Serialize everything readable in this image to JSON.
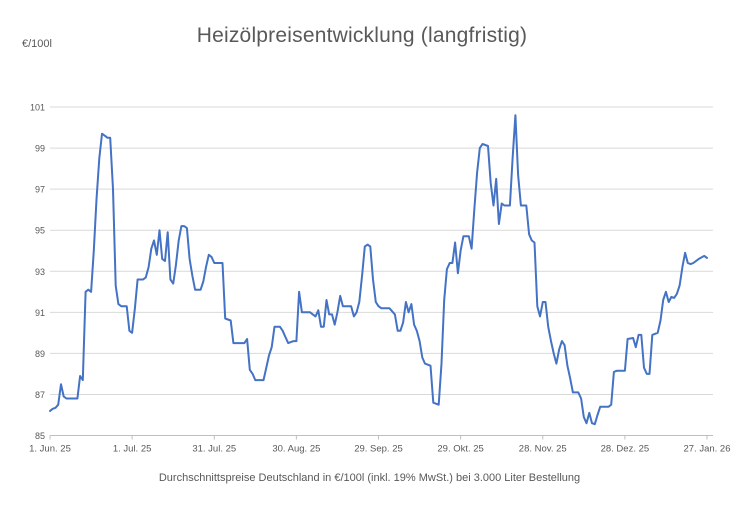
{
  "title": "Heizölpreisentwicklung (langfristig)",
  "y_axis_unit": "€/100l",
  "footnote": "Durchschnittspreise Deutschland in €/100l (inkl. 19% MwSt.) bei 3.000 Liter Bestellung",
  "colors": {
    "line": "#4472C4",
    "gridline": "#D9D9D9",
    "axis": "#BFBFBF",
    "tick_label": "#595959",
    "title_text": "#595959"
  },
  "chart_data": {
    "type": "line",
    "title": "Heizölpreisentwicklung (langfristig)",
    "ylabel": "€/100l",
    "xlabel": "",
    "ylim": [
      85,
      101
    ],
    "y_ticks": [
      85,
      87,
      89,
      91,
      93,
      95,
      97,
      99,
      101
    ],
    "grid": "horizontal",
    "legend_position": "none",
    "x_tick_labels": [
      "1. Jun. 25",
      "1. Jul. 25",
      "31. Jul. 25",
      "30. Aug. 25",
      "29. Sep. 25",
      "29. Okt. 25",
      "28. Nov. 25",
      "28. Dez. 25",
      "27. Jan. 26"
    ],
    "x_tick_days": [
      0,
      30,
      60,
      90,
      120,
      150,
      180,
      210,
      240
    ],
    "x_range_days": [
      0,
      240
    ],
    "series_points_day_value": [
      [
        0,
        86.2
      ],
      [
        1,
        86.3
      ],
      [
        2,
        86.35
      ],
      [
        3,
        86.5
      ],
      [
        4,
        87.5
      ],
      [
        5,
        86.9
      ],
      [
        6,
        86.8
      ],
      [
        8,
        86.8
      ],
      [
        10,
        86.8
      ],
      [
        11,
        87.9
      ],
      [
        12,
        87.7
      ],
      [
        13,
        92.0
      ],
      [
        14,
        92.1
      ],
      [
        15,
        92.0
      ],
      [
        16,
        94.0
      ],
      [
        17,
        96.5
      ],
      [
        18,
        98.5
      ],
      [
        19,
        99.7
      ],
      [
        20,
        99.6
      ],
      [
        21,
        99.5
      ],
      [
        22,
        99.5
      ],
      [
        23,
        97.0
      ],
      [
        24,
        92.3
      ],
      [
        25,
        91.4
      ],
      [
        26,
        91.3
      ],
      [
        28,
        91.3
      ],
      [
        29,
        90.1
      ],
      [
        30,
        90.0
      ],
      [
        31,
        91.2
      ],
      [
        32,
        92.6
      ],
      [
        34,
        92.6
      ],
      [
        35,
        92.7
      ],
      [
        36,
        93.2
      ],
      [
        37,
        94.1
      ],
      [
        38,
        94.5
      ],
      [
        39,
        93.8
      ],
      [
        40,
        95.0
      ],
      [
        41,
        93.6
      ],
      [
        42,
        93.5
      ],
      [
        43,
        94.9
      ],
      [
        44,
        92.6
      ],
      [
        45,
        92.4
      ],
      [
        46,
        93.3
      ],
      [
        47,
        94.5
      ],
      [
        48,
        95.2
      ],
      [
        49,
        95.2
      ],
      [
        50,
        95.1
      ],
      [
        51,
        93.6
      ],
      [
        52,
        92.8
      ],
      [
        53,
        92.1
      ],
      [
        55,
        92.1
      ],
      [
        56,
        92.5
      ],
      [
        57,
        93.2
      ],
      [
        58,
        93.8
      ],
      [
        59,
        93.7
      ],
      [
        60,
        93.4
      ],
      [
        63,
        93.4
      ],
      [
        64,
        90.7
      ],
      [
        66,
        90.6
      ],
      [
        67,
        89.5
      ],
      [
        70,
        89.5
      ],
      [
        71,
        89.5
      ],
      [
        72,
        89.7
      ],
      [
        73,
        88.2
      ],
      [
        74,
        88.0
      ],
      [
        75,
        87.7
      ],
      [
        78,
        87.7
      ],
      [
        79,
        88.3
      ],
      [
        80,
        88.9
      ],
      [
        81,
        89.3
      ],
      [
        82,
        90.3
      ],
      [
        84,
        90.3
      ],
      [
        85,
        90.1
      ],
      [
        86,
        89.8
      ],
      [
        87,
        89.5
      ],
      [
        89,
        89.6
      ],
      [
        90,
        89.6
      ],
      [
        91,
        92.0
      ],
      [
        92,
        91.0
      ],
      [
        95,
        91.0
      ],
      [
        96,
        90.9
      ],
      [
        97,
        90.8
      ],
      [
        98,
        91.1
      ],
      [
        99,
        90.3
      ],
      [
        100,
        90.3
      ],
      [
        101,
        91.6
      ],
      [
        102,
        90.9
      ],
      [
        103,
        90.9
      ],
      [
        104,
        90.4
      ],
      [
        105,
        91.0
      ],
      [
        106,
        91.8
      ],
      [
        107,
        91.3
      ],
      [
        110,
        91.3
      ],
      [
        111,
        90.8
      ],
      [
        112,
        91.0
      ],
      [
        113,
        91.5
      ],
      [
        114,
        92.8
      ],
      [
        115,
        94.2
      ],
      [
        116,
        94.3
      ],
      [
        117,
        94.2
      ],
      [
        118,
        92.6
      ],
      [
        119,
        91.5
      ],
      [
        120,
        91.3
      ],
      [
        121,
        91.2
      ],
      [
        124,
        91.2
      ],
      [
        126,
        90.9
      ],
      [
        127,
        90.1
      ],
      [
        128,
        90.1
      ],
      [
        129,
        90.5
      ],
      [
        130,
        91.5
      ],
      [
        131,
        91.0
      ],
      [
        132,
        91.4
      ],
      [
        133,
        90.4
      ],
      [
        134,
        90.1
      ],
      [
        135,
        89.6
      ],
      [
        136,
        88.8
      ],
      [
        137,
        88.5
      ],
      [
        139,
        88.4
      ],
      [
        140,
        86.6
      ],
      [
        142,
        86.5
      ],
      [
        143,
        88.5
      ],
      [
        144,
        91.6
      ],
      [
        145,
        93.1
      ],
      [
        146,
        93.4
      ],
      [
        147,
        93.4
      ],
      [
        148,
        94.4
      ],
      [
        149,
        92.9
      ],
      [
        150,
        94.0
      ],
      [
        151,
        94.7
      ],
      [
        153,
        94.7
      ],
      [
        154,
        94.1
      ],
      [
        155,
        96.0
      ],
      [
        156,
        97.8
      ],
      [
        157,
        99.0
      ],
      [
        158,
        99.2
      ],
      [
        160,
        99.1
      ],
      [
        161,
        97.3
      ],
      [
        162,
        96.2
      ],
      [
        163,
        97.5
      ],
      [
        164,
        95.3
      ],
      [
        165,
        96.3
      ],
      [
        166,
        96.2
      ],
      [
        168,
        96.2
      ],
      [
        169,
        98.5
      ],
      [
        170,
        100.6
      ],
      [
        171,
        97.7
      ],
      [
        172,
        96.2
      ],
      [
        174,
        96.2
      ],
      [
        175,
        94.8
      ],
      [
        176,
        94.5
      ],
      [
        177,
        94.4
      ],
      [
        178,
        91.3
      ],
      [
        179,
        90.8
      ],
      [
        180,
        91.5
      ],
      [
        181,
        91.5
      ],
      [
        182,
        90.3
      ],
      [
        183,
        89.6
      ],
      [
        184,
        89.0
      ],
      [
        185,
        88.5
      ],
      [
        186,
        89.2
      ],
      [
        187,
        89.6
      ],
      [
        188,
        89.4
      ],
      [
        189,
        88.4
      ],
      [
        190,
        87.8
      ],
      [
        191,
        87.1
      ],
      [
        193,
        87.1
      ],
      [
        194,
        86.8
      ],
      [
        195,
        85.9
      ],
      [
        196,
        85.6
      ],
      [
        197,
        86.1
      ],
      [
        198,
        85.6
      ],
      [
        199,
        85.55
      ],
      [
        200,
        86.0
      ],
      [
        201,
        86.4
      ],
      [
        204,
        86.4
      ],
      [
        205,
        86.5
      ],
      [
        206,
        88.1
      ],
      [
        207,
        88.15
      ],
      [
        210,
        88.15
      ],
      [
        211,
        89.7
      ],
      [
        213,
        89.75
      ],
      [
        214,
        89.3
      ],
      [
        215,
        89.9
      ],
      [
        216,
        89.9
      ],
      [
        217,
        88.3
      ],
      [
        218,
        88.0
      ],
      [
        219,
        88.0
      ],
      [
        220,
        89.9
      ],
      [
        222,
        90.0
      ],
      [
        223,
        90.6
      ],
      [
        224,
        91.6
      ],
      [
        225,
        92.0
      ],
      [
        226,
        91.5
      ],
      [
        227,
        91.75
      ],
      [
        228,
        91.7
      ],
      [
        229,
        91.9
      ],
      [
        230,
        92.3
      ],
      [
        231,
        93.2
      ],
      [
        232,
        93.9
      ],
      [
        233,
        93.4
      ],
      [
        234,
        93.35
      ],
      [
        235,
        93.4
      ],
      [
        237,
        93.6
      ],
      [
        239,
        93.75
      ],
      [
        240,
        93.65
      ]
    ]
  }
}
